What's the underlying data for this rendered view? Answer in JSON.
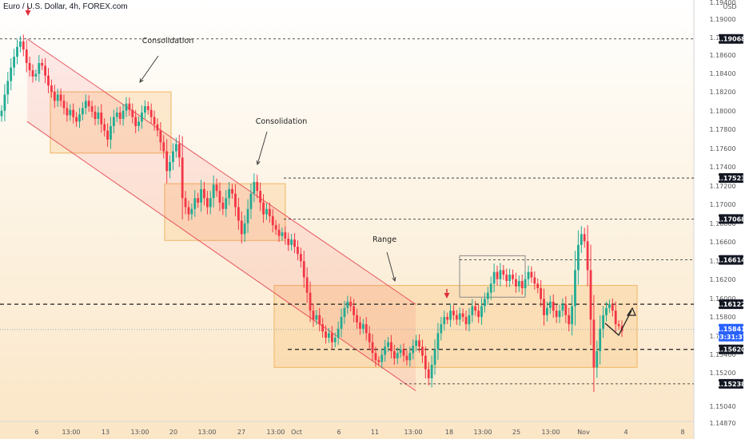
{
  "header": {
    "title": "Euro / U.S. Dollar, 4h, FOREX.com"
  },
  "chart_data": {
    "type": "candlestick",
    "title": "Euro / U.S. Dollar, 4h, FOREX.com",
    "currency": "USD",
    "ylim": [
      1.1482,
      1.195
    ],
    "y_ticks": [
      "1.19400",
      "1.19000",
      "1.18800",
      "1.18600",
      "1.18400",
      "1.18200",
      "1.18000",
      "1.17800",
      "1.17600",
      "1.17400",
      "1.17200",
      "1.17000",
      "1.16800",
      "1.16600",
      "1.16400",
      "1.16200",
      "1.16000",
      "1.15800",
      "1.15600",
      "1.15400",
      "1.15200",
      "1.15040",
      "1.14870"
    ],
    "x_ticks": [
      "6",
      "13:00",
      "13",
      "13:00",
      "20",
      "13:00",
      "27",
      "13:00",
      "Oct",
      "6",
      "11",
      "13:00",
      "18",
      "13:00",
      "25",
      "13:00",
      "Nov",
      "4",
      "8"
    ],
    "price_levels": [
      {
        "label": "1.19068",
        "value": 1.19068,
        "style": "thin"
      },
      {
        "label": "1.17523",
        "value": 1.17523,
        "style": "thin"
      },
      {
        "label": "1.17068",
        "value": 1.17068,
        "style": "thin"
      },
      {
        "label": "1.16614",
        "value": 1.16614,
        "style": "thin"
      },
      {
        "label": "1.16122",
        "value": 1.16122,
        "style": "bold"
      },
      {
        "label": "1.15620",
        "value": 1.1562,
        "style": "bold"
      },
      {
        "label": "1.15238",
        "value": 1.15238,
        "style": "thin"
      }
    ],
    "current_price": {
      "value": "1.15841",
      "countdown": "03:31:37"
    },
    "annotations": [
      "Consolidation",
      "Consolidation",
      "Range"
    ],
    "series": [
      {
        "name": "",
        "closes": [
          1.1827,
          1.1845,
          1.186,
          1.1875,
          1.1887,
          1.1898,
          1.1904,
          1.1895,
          1.188,
          1.1872,
          1.1865,
          1.1868,
          1.188,
          1.1877,
          1.1866,
          1.1855,
          1.1848,
          1.1838,
          1.1845,
          1.1838,
          1.183,
          1.1822,
          1.1828,
          1.182,
          1.1815,
          1.1823,
          1.183,
          1.1838,
          1.1832,
          1.1826,
          1.1818,
          1.1825,
          1.1812,
          1.1805,
          1.1795,
          1.181,
          1.182,
          1.1825,
          1.1818,
          1.1827,
          1.1835,
          1.1828,
          1.182,
          1.181,
          1.1815,
          1.1825,
          1.1832,
          1.1828,
          1.182,
          1.1812,
          1.1805,
          1.1792,
          1.1782,
          1.176,
          1.177,
          1.1782,
          1.179,
          1.1775,
          1.173,
          1.172,
          1.1712,
          1.1718,
          1.173,
          1.1725,
          1.174,
          1.173,
          1.172,
          1.173,
          1.1745,
          1.1738,
          1.1725,
          1.1718,
          1.173,
          1.174,
          1.1735,
          1.172,
          1.1705,
          1.169,
          1.1702,
          1.1718,
          1.1735,
          1.1748,
          1.1738,
          1.1725,
          1.1712,
          1.1718,
          1.171,
          1.17,
          1.1695,
          1.1688,
          1.1692,
          1.1685,
          1.1678,
          1.1684,
          1.1676,
          1.1668,
          1.166,
          1.1642,
          1.1625,
          1.1605,
          1.1595,
          1.16,
          1.159,
          1.1582,
          1.1575,
          1.158,
          1.157,
          1.1575,
          1.1585,
          1.1598,
          1.1608,
          1.1615,
          1.161,
          1.16,
          1.1592,
          1.1585,
          1.159,
          1.158,
          1.157,
          1.1558,
          1.155,
          1.1548,
          1.1556,
          1.1565,
          1.157,
          1.156,
          1.1552,
          1.1558,
          1.1562,
          1.1555,
          1.155,
          1.1558,
          1.1566,
          1.1572,
          1.1565,
          1.1555,
          1.154,
          1.153,
          1.1545,
          1.1562,
          1.158,
          1.159,
          1.1598,
          1.1595,
          1.1605,
          1.16,
          1.1595,
          1.1602,
          1.1598,
          1.159,
          1.16,
          1.161,
          1.1605,
          1.1598,
          1.161,
          1.1618,
          1.1625,
          1.1635,
          1.1648,
          1.164,
          1.165,
          1.1645,
          1.1638,
          1.1645,
          1.164,
          1.1632,
          1.1638,
          1.163,
          1.164,
          1.1648,
          1.1642,
          1.1635,
          1.163,
          1.1618,
          1.16,
          1.1608,
          1.1615,
          1.1605,
          1.1598,
          1.1605,
          1.1612,
          1.16,
          1.159,
          1.161,
          1.165,
          1.1678,
          1.169,
          1.1682,
          1.165,
          1.1595,
          1.1542,
          1.156,
          1.1585,
          1.16,
          1.1608,
          1.1612,
          1.1605,
          1.159,
          1.1588,
          1.1582
        ]
      }
    ]
  }
}
